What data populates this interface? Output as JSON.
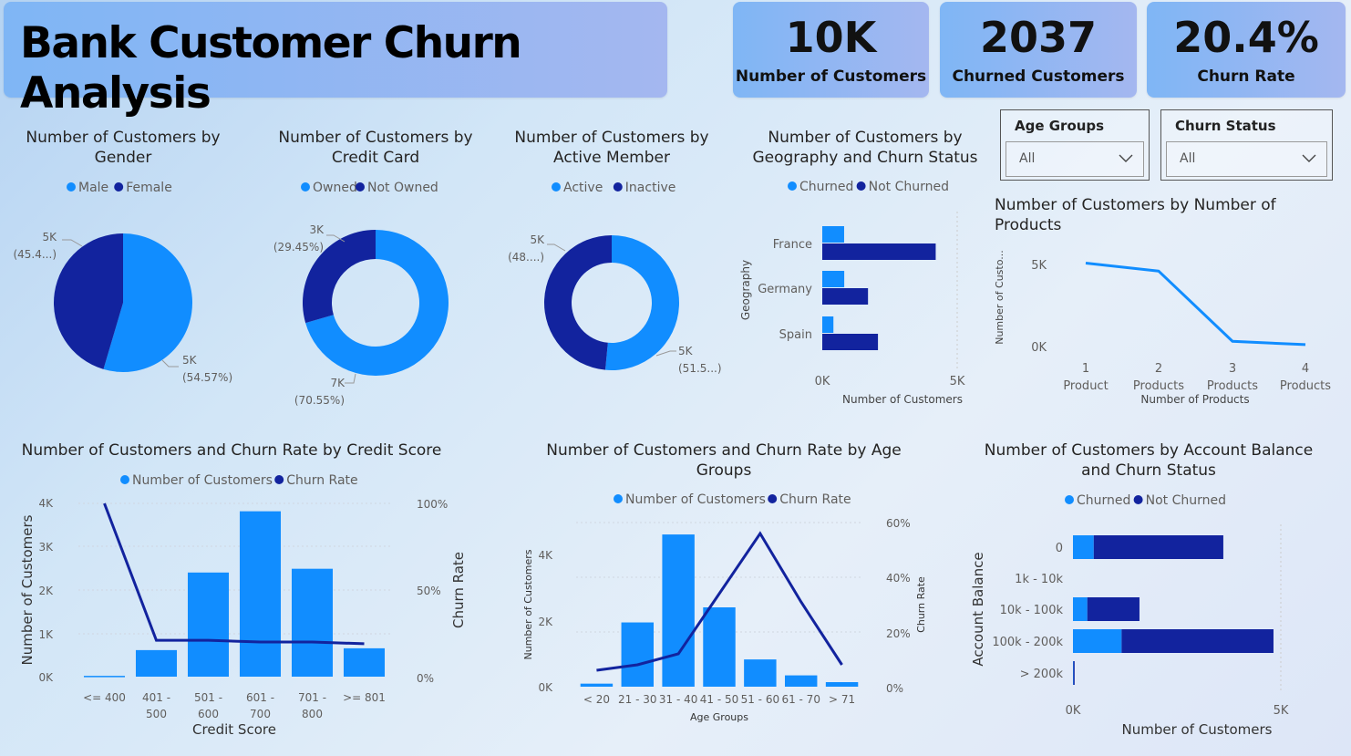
{
  "title": "Bank Customer Churn Analysis",
  "colors": {
    "light": "#118DFF",
    "dark": "#12239E",
    "text": "#252423",
    "muted": "#605E5C"
  },
  "kpis": [
    {
      "value": "10K",
      "label": "Number of Customers"
    },
    {
      "value": "2037",
      "label": "Churned Customers"
    },
    {
      "value": "20.4%",
      "label": "Churn Rate"
    }
  ],
  "slicers": [
    {
      "title": "Age Groups",
      "value": "All",
      "icon": "chevron-down-icon"
    },
    {
      "title": "Churn Status",
      "value": "All",
      "icon": "chevron-down-icon"
    }
  ],
  "chart_data": [
    {
      "id": "gender",
      "type": "pie",
      "title": [
        "Number of Customers by",
        "Gender"
      ],
      "legend": [
        "Male",
        "Female"
      ],
      "slices": [
        {
          "name": "Male",
          "value": 5457,
          "label1": "5K",
          "label2": "(54.57%)"
        },
        {
          "name": "Female",
          "value": 4543,
          "label1": "5K",
          "label2": "(45.4...)"
        }
      ]
    },
    {
      "id": "creditcard",
      "type": "donut",
      "title": [
        "Number of Customers by",
        "Credit Card"
      ],
      "legend": [
        "Owned",
        "Not Owned"
      ],
      "slices": [
        {
          "name": "Owned",
          "value": 7055,
          "label1": "7K",
          "label2": "(70.55%)"
        },
        {
          "name": "Not Owned",
          "value": 2945,
          "label1": "3K",
          "label2": "(29.45%)"
        }
      ]
    },
    {
      "id": "active",
      "type": "donut",
      "title": [
        "Number of Customers by",
        "Active Member"
      ],
      "legend": [
        "Active",
        "Inactive"
      ],
      "slices": [
        {
          "name": "Active",
          "value": 5151,
          "label1": "5K",
          "label2": "(51.5...)"
        },
        {
          "name": "Inactive",
          "value": 4849,
          "label1": "5K",
          "label2": "(48....)"
        }
      ]
    },
    {
      "id": "geography",
      "type": "bar",
      "title": [
        "Number of Customers by",
        "Geography and Churn Status"
      ],
      "legend": [
        "Churned",
        "Not Churned"
      ],
      "categories": [
        "France",
        "Germany",
        "Spain"
      ],
      "series": [
        {
          "name": "Churned",
          "values": [
            810,
            814,
            413
          ]
        },
        {
          "name": "Not Churned",
          "values": [
            4204,
            1695,
            2064
          ]
        }
      ],
      "xlabel": "Number of Customers",
      "ylabel": "Geography",
      "xlim": [
        0,
        5000
      ],
      "xticks": [
        "0K",
        "5K"
      ]
    },
    {
      "id": "products",
      "type": "line",
      "title": [
        "Number of Customers by Number of",
        "Products"
      ],
      "categories": [
        "1",
        "2",
        "3",
        "4"
      ],
      "categories2": [
        "Product",
        "Products",
        "Products",
        "Products"
      ],
      "values": [
        5084,
        4590,
        266,
        60
      ],
      "xlabel": "Number of Products",
      "ylabel": "Number of Custo...",
      "ylim": [
        0,
        5500
      ],
      "yticks": [
        "0K",
        "5K"
      ]
    },
    {
      "id": "creditscore",
      "type": "bar",
      "title": [
        "Number of Customers and Churn Rate by Credit Score"
      ],
      "legend": [
        "Number of Customers",
        "Churn Rate"
      ],
      "categories": [
        "<= 400",
        "401 -",
        "501 -",
        "601 -",
        "701 -",
        ">= 801"
      ],
      "categories2": [
        "",
        "500",
        "600",
        "700",
        "800",
        ""
      ],
      "bar_values": [
        19,
        613,
        2404,
        3818,
        2491,
        655
      ],
      "line_values": [
        100,
        21,
        21,
        20,
        20,
        19
      ],
      "xlabel": "Credit Score",
      "ylabel": "Number of Customers",
      "y2label": "Churn Rate",
      "ylim": [
        0,
        4000
      ],
      "y2lim": [
        0,
        100
      ],
      "yticks": [
        "0K",
        "1K",
        "2K",
        "3K",
        "4K"
      ],
      "y2ticks": [
        "0%",
        "50%",
        "100%"
      ]
    },
    {
      "id": "agegroups",
      "type": "bar",
      "title": [
        "Number of Customers and Churn Rate by Age",
        "Groups"
      ],
      "legend": [
        "Number of Customers",
        "Churn Rate"
      ],
      "categories": [
        "< 20",
        "21 - 30",
        "31 - 40",
        "41 - 50",
        "51 - 60",
        "61 - 70",
        "> 71"
      ],
      "bar_values": [
        89,
        1879,
        4451,
        2320,
        797,
        331,
        133
      ],
      "line_values": [
        6,
        8,
        12,
        34,
        56,
        31,
        8
      ],
      "xlabel": "Age Groups",
      "ylabel": "Number of Customers",
      "y2label": "Churn Rate",
      "ylim": [
        0,
        4800
      ],
      "y2lim": [
        0,
        60
      ],
      "yticks": [
        "0K",
        "2K",
        "4K"
      ],
      "y2ticks": [
        "0%",
        "20%",
        "40%",
        "60%"
      ]
    },
    {
      "id": "balance",
      "type": "bar",
      "title": [
        "Number of Customers by Account Balance",
        "and Churn Status"
      ],
      "legend": [
        "Churned",
        "Not Churned"
      ],
      "categories": [
        "0",
        "1k - 10k",
        "10k - 100k",
        "100k - 200k",
        "> 200k"
      ],
      "series": [
        {
          "name": "Churned",
          "values": [
            500,
            0,
            345,
            1170,
            10
          ]
        },
        {
          "name": "Not Churned",
          "values": [
            3117,
            0,
            1255,
            3654,
            30
          ]
        }
      ],
      "xlabel": "Number of Customers",
      "ylabel": "Account Balance",
      "xlim": [
        0,
        5000
      ],
      "xticks": [
        "0K",
        "5K"
      ]
    }
  ]
}
